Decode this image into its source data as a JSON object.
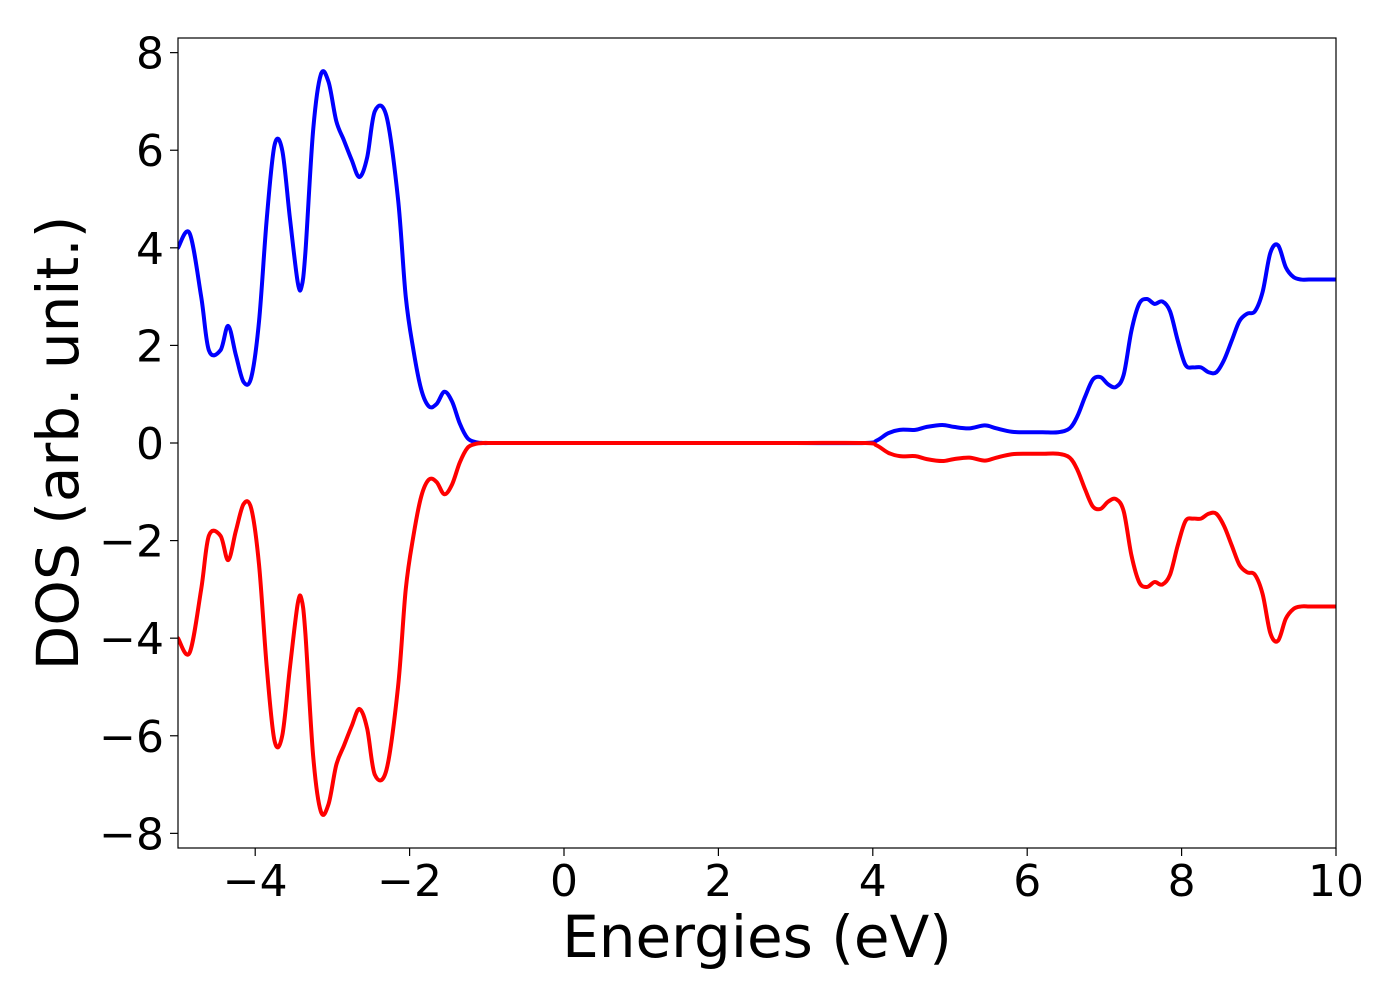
{
  "chart_data": {
    "type": "line",
    "title": "",
    "xlabel": "Energies (eV)",
    "ylabel": "DOS (arb. unit.)",
    "xlim": [
      -5,
      10
    ],
    "ylim": [
      -8.3,
      8.3
    ],
    "grid": false,
    "legend": "none",
    "x_ticks": [
      -4,
      -2,
      0,
      2,
      4,
      6,
      8,
      10
    ],
    "x_tick_labels": [
      "−4",
      "−2",
      "0",
      "2",
      "4",
      "6",
      "8",
      "10"
    ],
    "y_ticks": [
      8,
      6,
      4,
      2,
      0,
      -2,
      -4,
      -6,
      -8
    ],
    "y_tick_labels": [
      "8",
      "6",
      "4",
      "2",
      "0",
      "−2",
      "−4",
      "−6",
      "−8"
    ],
    "series": [
      {
        "color": "#0000ff",
        "x": [
          -5.0,
          -4.85,
          -4.7,
          -4.6,
          -4.45,
          -4.35,
          -4.25,
          -4.15,
          -4.05,
          -3.95,
          -3.85,
          -3.75,
          -3.65,
          -3.55,
          -3.45,
          -3.4,
          -3.35,
          -3.25,
          -3.15,
          -3.05,
          -2.95,
          -2.85,
          -2.75,
          -2.65,
          -2.55,
          -2.45,
          -2.3,
          -2.15,
          -2.05,
          -1.95,
          -1.85,
          -1.75,
          -1.65,
          -1.55,
          -1.45,
          -1.35,
          -1.25,
          -1.15,
          -1.05,
          -0.95,
          -0.85,
          -0.75,
          -0.65,
          -0.55,
          -0.45,
          0.0,
          1.0,
          2.0,
          3.0,
          3.9,
          4.05,
          4.2,
          4.35,
          4.55,
          4.7,
          4.9,
          5.05,
          5.25,
          5.45,
          5.6,
          5.8,
          6.0,
          6.2,
          6.4,
          6.55,
          6.65,
          6.75,
          6.85,
          6.95,
          7.05,
          7.15,
          7.25,
          7.35,
          7.45,
          7.55,
          7.65,
          7.75,
          7.85,
          7.95,
          8.05,
          8.15,
          8.25,
          8.35,
          8.45,
          8.55,
          8.65,
          8.75,
          8.85,
          8.95,
          9.05,
          9.15,
          9.25,
          9.35,
          9.45,
          9.55,
          9.65,
          9.75,
          9.85,
          10.0
        ],
        "y": [
          4.0,
          4.3,
          3.0,
          1.9,
          1.9,
          2.4,
          1.8,
          1.25,
          1.35,
          2.5,
          4.6,
          6.1,
          6.0,
          4.6,
          3.3,
          3.2,
          3.9,
          6.4,
          7.55,
          7.4,
          6.6,
          6.2,
          5.8,
          5.45,
          5.85,
          6.8,
          6.7,
          5.0,
          3.0,
          1.9,
          1.1,
          0.75,
          0.8,
          1.05,
          0.85,
          0.4,
          0.1,
          0.02,
          0.0,
          0.0,
          0.0,
          0.0,
          0.0,
          0.0,
          0.0,
          0.0,
          0.0,
          0.0,
          0.0,
          0.0,
          0.05,
          0.2,
          0.27,
          0.27,
          0.33,
          0.37,
          0.33,
          0.3,
          0.36,
          0.3,
          0.23,
          0.22,
          0.22,
          0.22,
          0.3,
          0.55,
          0.95,
          1.3,
          1.35,
          1.2,
          1.15,
          1.4,
          2.3,
          2.85,
          2.95,
          2.85,
          2.9,
          2.7,
          2.1,
          1.6,
          1.55,
          1.55,
          1.45,
          1.45,
          1.7,
          2.1,
          2.5,
          2.65,
          2.7,
          3.1,
          3.9,
          4.05,
          3.6,
          3.4,
          3.35,
          3.35,
          3.35,
          3.35,
          3.35
        ],
        "y_correction_note": ""
      },
      {
        "color": "#ff0000",
        "x": [
          -5.0,
          -4.85,
          -4.7,
          -4.6,
          -4.45,
          -4.35,
          -4.25,
          -4.15,
          -4.05,
          -3.95,
          -3.85,
          -3.75,
          -3.65,
          -3.55,
          -3.45,
          -3.4,
          -3.35,
          -3.25,
          -3.15,
          -3.05,
          -2.95,
          -2.85,
          -2.75,
          -2.65,
          -2.55,
          -2.45,
          -2.3,
          -2.15,
          -2.05,
          -1.95,
          -1.85,
          -1.75,
          -1.65,
          -1.55,
          -1.45,
          -1.35,
          -1.25,
          -1.15,
          -1.05,
          -0.95,
          -0.85,
          -0.75,
          -0.65,
          -0.55,
          -0.45,
          0.0,
          1.0,
          2.0,
          3.0,
          3.9,
          4.05,
          4.2,
          4.35,
          4.55,
          4.7,
          4.9,
          5.05,
          5.25,
          5.45,
          5.6,
          5.8,
          6.0,
          6.2,
          6.4,
          6.55,
          6.65,
          6.75,
          6.85,
          6.95,
          7.05,
          7.15,
          7.25,
          7.35,
          7.45,
          7.55,
          7.65,
          7.75,
          7.85,
          7.95,
          8.05,
          8.15,
          8.25,
          8.35,
          8.45,
          8.55,
          8.65,
          8.75,
          8.85,
          8.95,
          9.05,
          9.15,
          9.25,
          9.35,
          9.45,
          9.55,
          9.65,
          9.75,
          9.85,
          10.0
        ],
        "y": [
          -4.0,
          -4.3,
          -3.0,
          -1.9,
          -1.9,
          -2.4,
          -1.8,
          -1.25,
          -1.35,
          -2.5,
          -4.6,
          -6.1,
          -6.0,
          -4.6,
          -3.3,
          -3.2,
          -3.9,
          -6.4,
          -7.55,
          -7.4,
          -6.6,
          -6.2,
          -5.8,
          -5.45,
          -5.85,
          -6.8,
          -6.7,
          -5.0,
          -3.0,
          -1.9,
          -1.1,
          -0.75,
          -0.8,
          -1.05,
          -0.85,
          -0.4,
          -0.1,
          -0.02,
          0.0,
          0.0,
          0.0,
          0.0,
          0.0,
          0.0,
          0.0,
          0.0,
          0.0,
          0.0,
          0.0,
          0.0,
          -0.05,
          -0.2,
          -0.27,
          -0.27,
          -0.33,
          -0.37,
          -0.33,
          -0.3,
          -0.36,
          -0.3,
          -0.23,
          -0.22,
          -0.22,
          -0.22,
          -0.3,
          -0.55,
          -0.95,
          -1.3,
          -1.35,
          -1.2,
          -1.15,
          -1.4,
          -2.3,
          -2.85,
          -2.95,
          -2.85,
          -2.9,
          -2.7,
          -2.1,
          -1.6,
          -1.55,
          -1.55,
          -1.45,
          -1.45,
          -1.7,
          -2.1,
          -2.5,
          -2.65,
          -2.7,
          -3.1,
          -3.9,
          -4.05,
          -3.6,
          -3.4,
          -3.35,
          -3.35,
          -3.35,
          -3.35,
          -3.35
        ]
      }
    ]
  }
}
